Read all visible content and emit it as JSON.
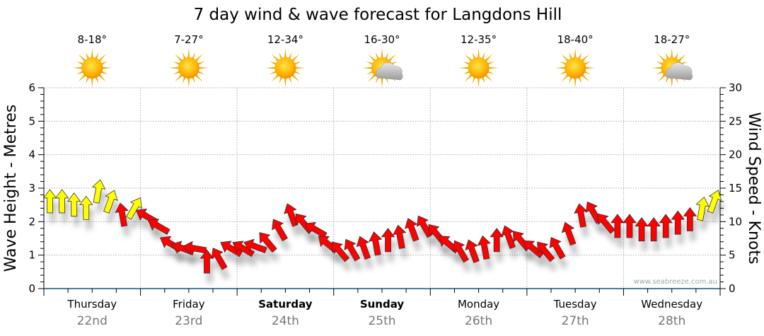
{
  "chart_data": {
    "type": "scatter",
    "title": "7 day wind & wave forecast for Langdons Hill",
    "ylabel_left": "Wave Height - Metres",
    "ylabel_right": "Wind Speed - Knots",
    "ylim_left": [
      0,
      6
    ],
    "ylim_right": [
      0,
      30
    ],
    "yticks_left": [
      "0",
      "1",
      "2",
      "3",
      "4",
      "5",
      "6"
    ],
    "yticks_right": [
      "0",
      "5",
      "10",
      "15",
      "20",
      "25",
      "30"
    ],
    "grid": true,
    "watermark": "www.seabreeze.com.au",
    "days": [
      {
        "name": "Thursday",
        "date": "22nd",
        "temp": "8-18°",
        "weather": "sunny",
        "bold": false
      },
      {
        "name": "Friday",
        "date": "23rd",
        "temp": "7-27°",
        "weather": "sunny",
        "bold": false
      },
      {
        "name": "Saturday",
        "date": "24th",
        "temp": "12-34°",
        "weather": "sunny",
        "bold": true
      },
      {
        "name": "Sunday",
        "date": "25th",
        "temp": "16-30°",
        "weather": "partly-cloudy",
        "bold": true
      },
      {
        "name": "Monday",
        "date": "26th",
        "temp": "12-35°",
        "weather": "sunny",
        "bold": false
      },
      {
        "name": "Tuesday",
        "date": "27th",
        "temp": "18-40°",
        "weather": "sunny",
        "bold": false
      },
      {
        "name": "Wednesday",
        "date": "28th",
        "temp": "18-27°",
        "weather": "partly-cloudy",
        "bold": false
      }
    ],
    "wind_interval_hours": 3,
    "wind_knots": [
      13,
      13,
      12.5,
      12,
      14.5,
      13,
      11,
      12,
      10.8,
      9.3,
      6.7,
      6,
      6,
      4,
      4.5,
      6,
      6,
      6.3,
      7,
      8.8,
      11,
      9.8,
      8.8,
      6.7,
      5.6,
      5.8,
      6.1,
      6.7,
      7.2,
      7.7,
      8.8,
      9.3,
      8.2,
      6.7,
      5.6,
      5.6,
      6.1,
      7.2,
      7.7,
      7.2,
      6,
      5.6,
      6.1,
      8.2,
      10.9,
      11.4,
      9.8,
      9.3,
      9.3,
      8.8,
      8.8,
      9.3,
      9.8,
      10.3,
      11.9,
      13
    ],
    "wind_direction_deg": [
      0,
      0,
      0,
      0,
      10,
      20,
      350,
      30,
      300,
      300,
      300,
      290,
      280,
      0,
      330,
      300,
      300,
      290,
      320,
      330,
      340,
      320,
      300,
      310,
      320,
      330,
      340,
      350,
      0,
      350,
      340,
      330,
      320,
      310,
      330,
      340,
      350,
      0,
      340,
      320,
      310,
      320,
      330,
      340,
      350,
      330,
      320,
      0,
      0,
      0,
      0,
      0,
      0,
      0,
      10,
      20
    ],
    "wind_color": [
      "yellow",
      "yellow",
      "yellow",
      "yellow",
      "yellow",
      "yellow",
      "red",
      "yellow",
      "red",
      "red",
      "red",
      "red",
      "red",
      "red",
      "red",
      "red",
      "red",
      "red",
      "red",
      "red",
      "red",
      "red",
      "red",
      "red",
      "red",
      "red",
      "red",
      "red",
      "red",
      "red",
      "red",
      "red",
      "red",
      "red",
      "red",
      "red",
      "red",
      "red",
      "red",
      "red",
      "red",
      "red",
      "red",
      "red",
      "red",
      "red",
      "red",
      "red",
      "red",
      "red",
      "red",
      "red",
      "red",
      "red",
      "yellow",
      "yellow"
    ],
    "colors": {
      "yellow": "#ffff00",
      "red": "#ff0000",
      "axis": "#1a4f7a",
      "grid": "#aaaaaa"
    }
  }
}
